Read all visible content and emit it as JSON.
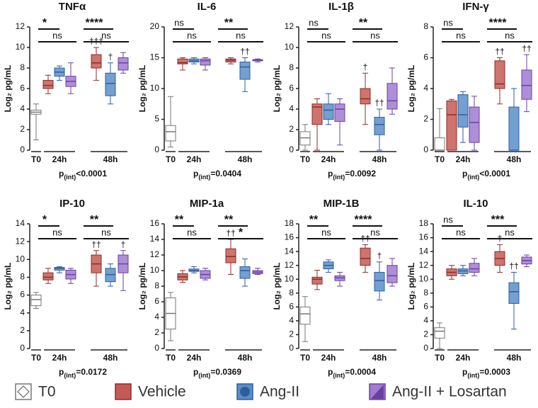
{
  "legend": [
    {
      "name": "T0",
      "color": "#ffffff"
    },
    {
      "name": "Vehicle",
      "color": "#c55a55"
    },
    {
      "name": "Ang-II",
      "color": "#5a8ec9"
    },
    {
      "name": "Ang-II + Losartan",
      "color": "#a07bd0"
    }
  ],
  "chart_data": [
    {
      "type": "box",
      "title": "TNFα",
      "ylabel": "Log₂ pg/mL",
      "groups": [
        "T0",
        "24h",
        "48h"
      ],
      "ylim": [
        0,
        12
      ],
      "yticks": [
        0,
        2,
        4,
        6,
        8,
        10,
        12
      ],
      "boxes": [
        [
          1,
          3.5,
          3.7,
          3.9,
          4.5
        ],
        [
          5.5,
          6,
          6.3,
          6.8,
          7.3
        ],
        [
          6.8,
          7.2,
          7.6,
          8,
          8.2
        ],
        [
          5.5,
          6.2,
          6.7,
          7.2,
          8.5
        ],
        [
          6.8,
          8,
          8.5,
          9.3,
          10
        ],
        [
          4.5,
          5.3,
          6.5,
          7.5,
          8.5
        ],
        [
          7.5,
          7.8,
          8.5,
          9,
          9.5
        ]
      ],
      "sig_24h": [
        "*",
        "ns"
      ],
      "sig_48h": [
        "****",
        "ns"
      ],
      "daggers": [
        null,
        null,
        null,
        null,
        "†††",
        "†",
        null
      ],
      "p_label": "p",
      "p_sub": "(int)",
      "p_value": "<0.0001"
    },
    {
      "type": "box",
      "title": "IL-6",
      "ylabel": "Log₂ pg/mL",
      "groups": [
        "T0",
        "24h",
        "48h"
      ],
      "ylim": [
        0,
        20
      ],
      "yticks": [
        0,
        5,
        10,
        15,
        20
      ],
      "boxes": [
        [
          0.5,
          1.5,
          3,
          4,
          8.7
        ],
        [
          13,
          14,
          14.2,
          14.8,
          15
        ],
        [
          14,
          14.3,
          14.5,
          14.8,
          15
        ],
        [
          13,
          13.8,
          14.5,
          14.8,
          15
        ],
        [
          14,
          14.3,
          14.6,
          14.8,
          15
        ],
        [
          9.5,
          11.5,
          13.5,
          14.3,
          15
        ],
        [
          14.3,
          14.5,
          14.6,
          14.7,
          14.8
        ]
      ],
      "sig_24h": [
        "ns",
        "ns"
      ],
      "sig_48h": [
        "**",
        "ns"
      ],
      "daggers": [
        null,
        null,
        null,
        null,
        null,
        "††",
        null
      ],
      "p_label": "p",
      "p_sub": "(int)",
      "p_value": "=0.0404"
    },
    {
      "type": "box",
      "title": "IL-1β",
      "ylabel": "Log₂ pg/mL",
      "groups": [
        "T0",
        "24h",
        "48h"
      ],
      "ylim": [
        0,
        12
      ],
      "yticks": [
        0,
        2,
        4,
        6,
        8,
        10,
        12
      ],
      "boxes": [
        [
          0,
          0.5,
          1.2,
          1.8,
          2.5
        ],
        [
          0,
          2.5,
          4.2,
          4.5,
          5
        ],
        [
          2.5,
          3,
          3.9,
          4.5,
          5.5
        ],
        [
          0.5,
          2.8,
          4,
          4.5,
          5
        ],
        [
          2.5,
          4.5,
          5,
          6,
          7.5
        ],
        [
          0,
          1.5,
          2.5,
          3.2,
          4
        ],
        [
          3.5,
          4,
          4.8,
          6.5,
          8
        ]
      ],
      "sig_24h": [
        "ns",
        "ns"
      ],
      "sig_48h": [
        "**",
        "ns"
      ],
      "daggers": [
        null,
        null,
        null,
        null,
        "†",
        "††",
        null
      ],
      "p_label": "p",
      "p_sub": "(int)",
      "p_value": "=0.0092"
    },
    {
      "type": "box",
      "title": "IFN-γ",
      "ylabel": "Log₂ pg/mL",
      "groups": [
        "T0",
        "24h",
        "48h"
      ],
      "ylim": [
        0,
        8
      ],
      "yticks": [
        0,
        2,
        4,
        6,
        8
      ],
      "boxes": [
        [
          0,
          0,
          0,
          0.8,
          2.7
        ],
        [
          0,
          0,
          2.3,
          3.2,
          3.3
        ],
        [
          0.5,
          1.5,
          2.3,
          3.6,
          3.8
        ],
        [
          0,
          0.5,
          1.8,
          2.8,
          3.5
        ],
        [
          3,
          4,
          4.3,
          5.8,
          6
        ],
        [
          0,
          0,
          0,
          2.8,
          4
        ],
        [
          2.5,
          3.3,
          4.2,
          5.2,
          6.2
        ]
      ],
      "sig_24h": [
        "ns",
        "ns"
      ],
      "sig_48h": [
        "****",
        "ns"
      ],
      "daggers": [
        null,
        null,
        null,
        null,
        "††",
        null,
        "††"
      ],
      "p_label": "p",
      "p_sub": "(int)",
      "p_value": "<0.0001"
    },
    {
      "type": "box",
      "title": "IP-10",
      "ylabel": "Log₂ pg/mL",
      "groups": [
        "T0",
        "24h",
        "48h"
      ],
      "ylim": [
        0,
        14
      ],
      "yticks": [
        0,
        2,
        4,
        6,
        8,
        10,
        12,
        14
      ],
      "boxes": [
        [
          4.5,
          4.8,
          5.5,
          6,
          6.3
        ],
        [
          7.3,
          7.7,
          8,
          8.5,
          9
        ],
        [
          8.5,
          8.8,
          9,
          9.1,
          9.2
        ],
        [
          7.3,
          7.8,
          8.3,
          8.8,
          9
        ],
        [
          7,
          8.5,
          9.5,
          10.5,
          11
        ],
        [
          7,
          7.5,
          8.3,
          9,
          9.5
        ],
        [
          6.5,
          8.5,
          9.5,
          10.5,
          11
        ]
      ],
      "sig_24h": [
        "*",
        "ns"
      ],
      "sig_48h": [
        "**",
        "ns"
      ],
      "daggers": [
        null,
        null,
        null,
        null,
        "††",
        null,
        "†"
      ],
      "p_label": "p",
      "p_sub": "(int)",
      "p_value": "=0.0172"
    },
    {
      "type": "box",
      "title": "MIP-1a",
      "ylabel": "Log₂ pg/mL",
      "groups": [
        "T0",
        "24h",
        "48h"
      ],
      "ylim": [
        0,
        16
      ],
      "yticks": [
        0,
        2,
        4,
        6,
        8,
        10,
        12,
        14,
        16
      ],
      "boxes": [
        [
          1,
          2.5,
          4.5,
          6.5,
          7.2
        ],
        [
          8.5,
          8.8,
          9.2,
          9.6,
          10
        ],
        [
          9.7,
          9.9,
          10,
          10.2,
          10.5
        ],
        [
          8.8,
          9,
          9.5,
          10,
          10.3
        ],
        [
          9.5,
          11,
          11.8,
          12.8,
          14
        ],
        [
          8,
          9,
          10,
          10.5,
          11.5
        ],
        [
          9.5,
          9.6,
          9.8,
          10,
          10.3
        ]
      ],
      "sig_24h": [
        "**",
        "ns"
      ],
      "sig_48h": [
        "**",
        "*"
      ],
      "daggers": [
        null,
        null,
        null,
        null,
        "††",
        null,
        null
      ],
      "p_label": "p",
      "p_sub": "(int)",
      "p_value": "=0.0369"
    },
    {
      "type": "box",
      "title": "MIP-1B",
      "ylabel": "Log₂ pg/mL",
      "groups": [
        "T0",
        "24h",
        "48h"
      ],
      "ylim": [
        0,
        18
      ],
      "yticks": [
        0,
        2,
        4,
        6,
        8,
        10,
        12,
        14,
        16,
        18
      ],
      "boxes": [
        [
          1,
          3.5,
          5,
          6,
          7.5
        ],
        [
          8.5,
          9.3,
          10,
          10.3,
          11.3
        ],
        [
          11,
          11.5,
          12,
          12.5,
          12.8
        ],
        [
          9,
          9.8,
          10.2,
          10.5,
          11
        ],
        [
          11,
          12,
          13,
          14.5,
          15
        ],
        [
          7,
          8.3,
          9.8,
          11,
          12.5
        ],
        [
          9,
          9.5,
          10.5,
          12,
          13
        ]
      ],
      "sig_24h": [
        "**",
        "ns"
      ],
      "sig_48h": [
        "****",
        "ns"
      ],
      "daggers": [
        null,
        null,
        null,
        null,
        "††",
        "†",
        null
      ],
      "p_label": "p",
      "p_sub": "(int)",
      "p_value": "=0.0004"
    },
    {
      "type": "box",
      "title": "IL-10",
      "ylabel": "Log₂ pg/mL",
      "groups": [
        "T0",
        "24h",
        "48h"
      ],
      "ylim": [
        0,
        18
      ],
      "yticks": [
        0,
        2,
        4,
        6,
        8,
        10,
        12,
        14,
        16,
        18
      ],
      "boxes": [
        [
          0,
          1.5,
          2.5,
          3,
          3.7
        ],
        [
          10,
          10.5,
          11,
          11.5,
          12
        ],
        [
          10.5,
          10.8,
          11.2,
          11.5,
          12
        ],
        [
          10.5,
          11,
          11.5,
          12.3,
          13
        ],
        [
          11,
          12,
          13,
          14,
          15
        ],
        [
          2.8,
          6.5,
          8.2,
          9.5,
          11
        ],
        [
          11.8,
          12.2,
          12.7,
          13.2,
          13.5
        ]
      ],
      "sig_24h": [
        "ns",
        "ns"
      ],
      "sig_48h": [
        "***",
        "ns"
      ],
      "daggers": [
        null,
        null,
        null,
        null,
        "†",
        "††",
        null
      ],
      "p_label": "p",
      "p_sub": "(int)",
      "p_value": "=0.0003"
    }
  ]
}
